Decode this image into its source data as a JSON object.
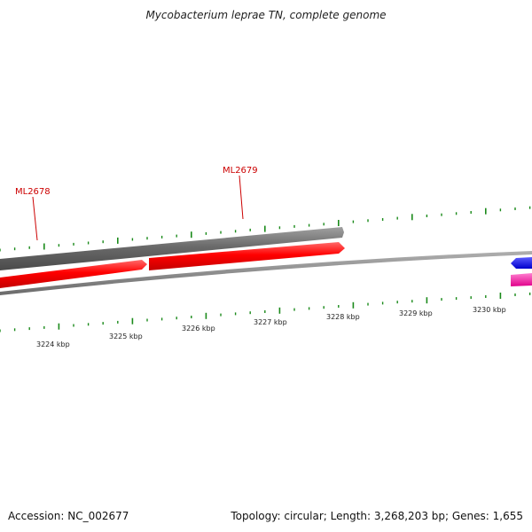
{
  "title": "Mycobacterium leprae TN, complete genome",
  "footer": {
    "accession": "Accession: NC_002677",
    "summary": "Topology: circular; Length: 3,268,203 bp; Genes: 1,655"
  },
  "genes": [
    {
      "label": "ML2678",
      "label_color": "#cc0000"
    },
    {
      "label": "ML2679",
      "label_color": "#cc0000"
    }
  ],
  "scale_labels": [
    "3224 kbp",
    "3225 kbp",
    "3226 kbp",
    "3227 kbp",
    "3228 kbp",
    "3229 kbp",
    "3230 kbp"
  ],
  "colors": {
    "tick": "#1a8a1a",
    "gray_track": "#6e6e6e",
    "red_gene": "#ff0000",
    "backbone": "#888888",
    "blue_gene": "#0000ee",
    "pink_gene": "#ff1aa3"
  }
}
